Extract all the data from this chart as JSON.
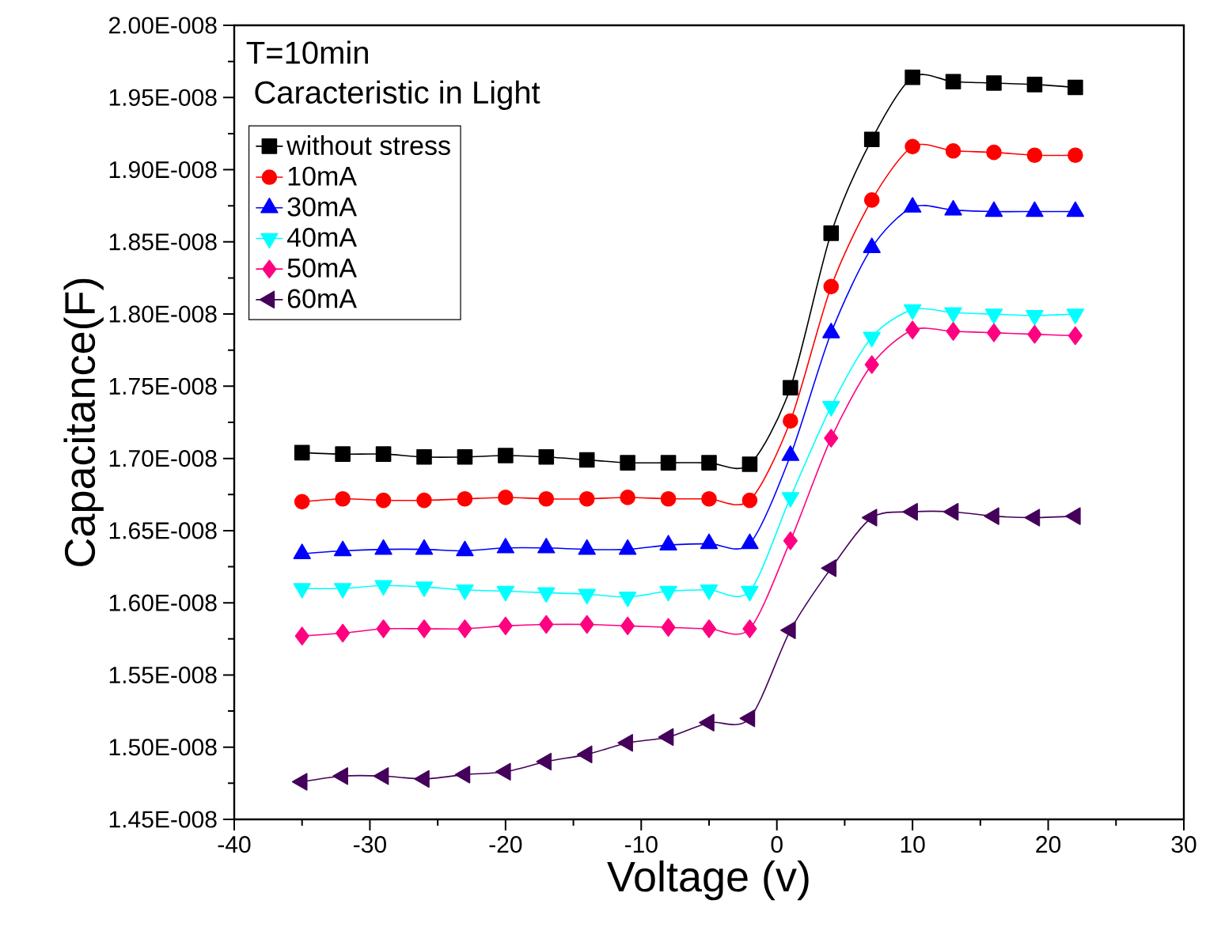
{
  "chart_data": {
    "type": "line",
    "annotations": [
      "T=10min",
      "Caracteristic  in Light"
    ],
    "xlabel": "Voltage (v)",
    "ylabel": "Capacitance(F)",
    "x": [
      -35,
      -32,
      -29,
      -26,
      -23,
      -20,
      -17,
      -14,
      -11,
      -8,
      -5,
      -2,
      1,
      4,
      7,
      10,
      13,
      16,
      19,
      22
    ],
    "series": [
      {
        "name": "without stress",
        "color": "#000000",
        "marker": "square",
        "values": [
          1.704e-08,
          1.703e-08,
          1.703e-08,
          1.701e-08,
          1.701e-08,
          1.702e-08,
          1.701e-08,
          1.699e-08,
          1.697e-08,
          1.697e-08,
          1.697e-08,
          1.696e-08,
          1.749e-08,
          1.856e-08,
          1.921e-08,
          1.964e-08,
          1.961e-08,
          1.96e-08,
          1.959e-08,
          1.957e-08
        ]
      },
      {
        "name": "10mA",
        "color": "#ff0000",
        "marker": "circle",
        "values": [
          1.67e-08,
          1.672e-08,
          1.671e-08,
          1.671e-08,
          1.672e-08,
          1.673e-08,
          1.672e-08,
          1.672e-08,
          1.673e-08,
          1.672e-08,
          1.672e-08,
          1.671e-08,
          1.726e-08,
          1.819e-08,
          1.879e-08,
          1.916e-08,
          1.913e-08,
          1.912e-08,
          1.91e-08,
          1.91e-08
        ]
      },
      {
        "name": "30mA",
        "color": "#0000ff",
        "marker": "triangle",
        "values": [
          1.634e-08,
          1.636e-08,
          1.637e-08,
          1.637e-08,
          1.636e-08,
          1.638e-08,
          1.638e-08,
          1.637e-08,
          1.637e-08,
          1.64e-08,
          1.641e-08,
          1.641e-08,
          1.702e-08,
          1.787e-08,
          1.846e-08,
          1.874e-08,
          1.872e-08,
          1.871e-08,
          1.871e-08,
          1.871e-08
        ]
      },
      {
        "name": "40mA",
        "color": "#00ffff",
        "marker": "triangle-down",
        "values": [
          1.61e-08,
          1.61e-08,
          1.612e-08,
          1.611e-08,
          1.609e-08,
          1.608e-08,
          1.607e-08,
          1.606e-08,
          1.604e-08,
          1.608e-08,
          1.609e-08,
          1.608e-08,
          1.673e-08,
          1.736e-08,
          1.784e-08,
          1.803e-08,
          1.801e-08,
          1.8e-08,
          1.799e-08,
          1.8e-08
        ]
      },
      {
        "name": "50mA",
        "color": "#ff0080",
        "marker": "diamond",
        "values": [
          1.577e-08,
          1.579e-08,
          1.582e-08,
          1.582e-08,
          1.582e-08,
          1.584e-08,
          1.585e-08,
          1.585e-08,
          1.584e-08,
          1.583e-08,
          1.582e-08,
          1.582e-08,
          1.643e-08,
          1.714e-08,
          1.765e-08,
          1.789e-08,
          1.788e-08,
          1.787e-08,
          1.786e-08,
          1.785e-08
        ]
      },
      {
        "name": "60mA",
        "color": "#44005a",
        "marker": "triangle-left",
        "values": [
          1.476e-08,
          1.48e-08,
          1.48e-08,
          1.478e-08,
          1.481e-08,
          1.483e-08,
          1.49e-08,
          1.495e-08,
          1.503e-08,
          1.507e-08,
          1.517e-08,
          1.52e-08,
          1.581e-08,
          1.624e-08,
          1.659e-08,
          1.663e-08,
          1.663e-08,
          1.66e-08,
          1.659e-08,
          1.66e-08
        ]
      }
    ],
    "xlim": [
      -40,
      30
    ],
    "xticks": [
      -40,
      -30,
      -20,
      -10,
      0,
      10,
      20,
      30
    ],
    "ylim": [
      1.45e-08,
      2e-08
    ],
    "yticks": [
      {
        "value": 1.45e-08,
        "label": "1.45E-008"
      },
      {
        "value": 1.5e-08,
        "label": "1.50E-008"
      },
      {
        "value": 1.55e-08,
        "label": "1.55E-008"
      },
      {
        "value": 1.6e-08,
        "label": "1.60E-008"
      },
      {
        "value": 1.65e-08,
        "label": "1.65E-008"
      },
      {
        "value": 1.7e-08,
        "label": "1.70E-008"
      },
      {
        "value": 1.75e-08,
        "label": "1.75E-008"
      },
      {
        "value": 1.8e-08,
        "label": "1.80E-008"
      },
      {
        "value": 1.85e-08,
        "label": "1.85E-008"
      },
      {
        "value": 1.9e-08,
        "label": "1.90E-008"
      },
      {
        "value": 1.95e-08,
        "label": "1.95E-008"
      },
      {
        "value": 2e-08,
        "label": "2.00E-008"
      }
    ],
    "legend": "top left"
  }
}
